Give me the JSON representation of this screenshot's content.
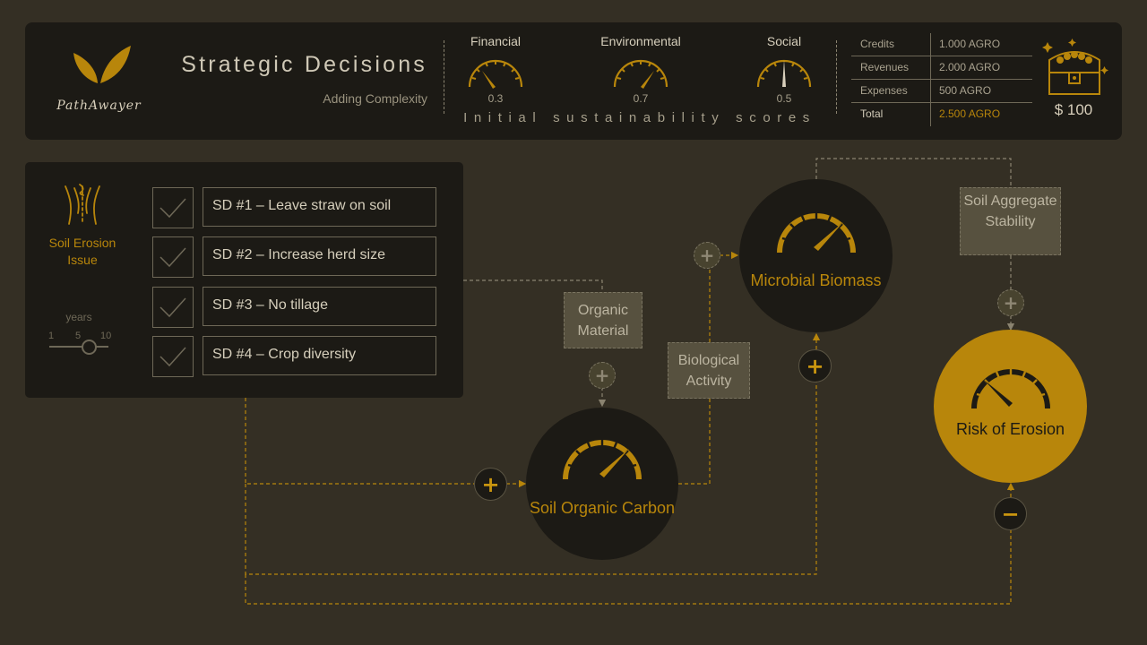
{
  "brand": {
    "name": "PathAwayer"
  },
  "header": {
    "title": "Strategic Decisions",
    "subtitle": "Adding Complexity",
    "scores_caption": "Initial sustainability scores",
    "gauges": [
      {
        "label": "Financial",
        "value": "0.3"
      },
      {
        "label": "Environmental",
        "value": "0.7"
      },
      {
        "label": "Social",
        "value": "0.5"
      }
    ],
    "ledger": [
      {
        "label": "Credits",
        "value": "1.000 AGRO"
      },
      {
        "label": "Revenues",
        "value": "2.000 AGRO"
      },
      {
        "label": "Expenses",
        "value": "500 AGRO"
      },
      {
        "label": "Total",
        "value": "2.500 AGRO"
      }
    ],
    "balance": "$ 100",
    "treasure_icon": "treasure-chest-icon"
  },
  "panel": {
    "issue_label": "Soil Erosion Issue",
    "issue_icon": "soil-erosion-icon",
    "years_label": "years",
    "year_ticks": [
      "1",
      "5",
      "10"
    ],
    "decisions": [
      {
        "label": "SD #1 – Leave straw on soil",
        "checked": true
      },
      {
        "label": "SD #2 – Increase herd size",
        "checked": true
      },
      {
        "label": "SD #3 – No tillage",
        "checked": true
      },
      {
        "label": "SD #4 – Crop diversity",
        "checked": true
      }
    ]
  },
  "diagram": {
    "nodes": {
      "microbial_biomass": "Microbial Biomass",
      "soil_organic_carbon": "Soil Organic Carbon",
      "risk_of_erosion": "Risk of Erosion"
    },
    "factors": {
      "soil_aggregate_stability": "Soil Aggregate Stability",
      "organic_material": "Organic Material",
      "biological_activity": "Biological Activity"
    },
    "operators": {
      "plus": "+",
      "minus": "−"
    }
  },
  "colors": {
    "background": "#342f24",
    "panel": "#1c1a15",
    "accent": "#b8860b",
    "factor_box": "#57513f",
    "text": "#d6cfbc"
  }
}
